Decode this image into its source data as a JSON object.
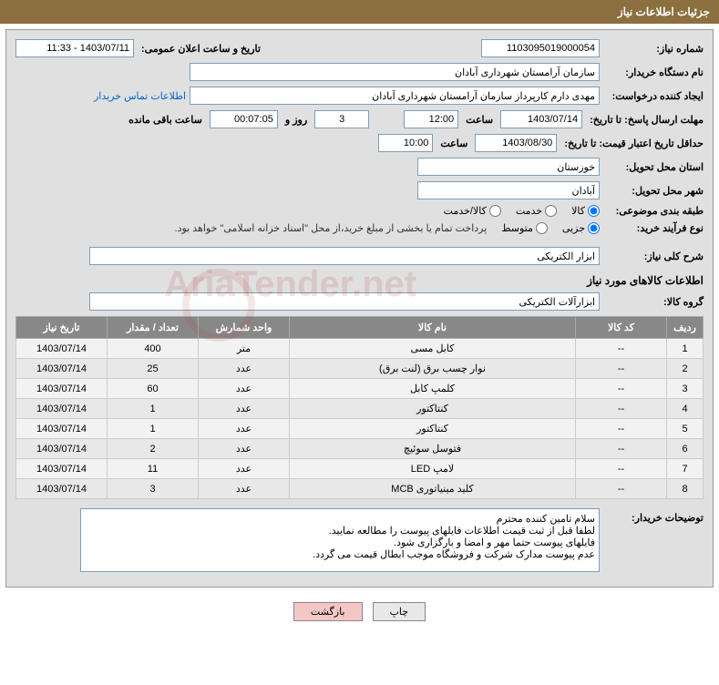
{
  "header": {
    "title": "جزئیات اطلاعات نیاز"
  },
  "form": {
    "need_number_label": "شماره نیاز:",
    "need_number": "1103095019000054",
    "announce_datetime_label": "تاریخ و ساعت اعلان عمومی:",
    "announce_datetime": "1403/07/11 - 11:33",
    "buyer_org_label": "نام دستگاه خریدار:",
    "buyer_org": "سازمان آرامستان شهرداری آبادان",
    "requester_label": "ایجاد کننده درخواست:",
    "requester": "مهدی دارم کارپرداز سازمان آرامستان شهرداری آبادان",
    "buyer_contact_link": "اطلاعات تماس خریدار",
    "response_deadline_label": "مهلت ارسال پاسخ: تا تاریخ:",
    "response_date": "1403/07/14",
    "time_label": "ساعت",
    "response_time": "12:00",
    "days_value": "3",
    "days_and_label": "روز و",
    "remaining_time": "00:07:05",
    "remaining_label": "ساعت باقی مانده",
    "price_validity_label": "حداقل تاریخ اعتبار قیمت: تا تاریخ:",
    "price_date": "1403/08/30",
    "price_time": "10:00",
    "delivery_province_label": "استان محل تحویل:",
    "delivery_province": "خوزستان",
    "delivery_city_label": "شهر محل تحویل:",
    "delivery_city": "آبادان",
    "category_label": "طبقه بندی موضوعی:",
    "cat_goods": "کالا",
    "cat_service": "خدمت",
    "cat_goods_service": "کالا/خدمت",
    "purchase_type_label": "نوع فرآیند خرید:",
    "pt_minor": "جزیی",
    "pt_medium": "متوسط",
    "payment_note": "پرداخت تمام یا بخشی از مبلغ خرید،از محل \"اسناد خزانه اسلامی\" خواهد بود.",
    "summary_label": "شرح کلی نیاز:",
    "summary_value": "ابزار الکتریکی",
    "goods_section_title": "اطلاعات کالاهای مورد نیاز",
    "goods_group_label": "گروه کالا:",
    "goods_group_value": "ابزارآلات الکتریکی",
    "notes_label": "توضیحات خریدار:",
    "notes_value": "سلام تامین کننده محترم\nلطفا قبل از ثبت قیمت اطلاعات فایلهای پیوست را مطالعه نمایید.\nفایلهای پیوست حتما مهر و امضا و بارگزاری شود.\nعدم پیوست مدارک شرکت و فروشگاه موجب ابطال قیمت می گردد."
  },
  "table": {
    "headers": [
      "ردیف",
      "کد کالا",
      "نام کالا",
      "واحد شمارش",
      "تعداد / مقدار",
      "تاریخ نیاز"
    ],
    "rows": [
      [
        "1",
        "--",
        "کابل مسی",
        "متر",
        "400",
        "1403/07/14"
      ],
      [
        "2",
        "--",
        "نوار چسب برق (لنت برق)",
        "عدد",
        "25",
        "1403/07/14"
      ],
      [
        "3",
        "--",
        "کلمپ کابل",
        "عدد",
        "60",
        "1403/07/14"
      ],
      [
        "4",
        "--",
        "کنتاکتور",
        "عدد",
        "1",
        "1403/07/14"
      ],
      [
        "5",
        "--",
        "کنتاکتور",
        "عدد",
        "1",
        "1403/07/14"
      ],
      [
        "6",
        "--",
        "فتوسل سوئیچ",
        "عدد",
        "2",
        "1403/07/14"
      ],
      [
        "7",
        "--",
        "لامپ LED",
        "عدد",
        "11",
        "1403/07/14"
      ],
      [
        "8",
        "--",
        "کلید مینیاتوری MCB",
        "عدد",
        "3",
        "1403/07/14"
      ]
    ],
    "col_widths": [
      "40px",
      "100px",
      "auto",
      "100px",
      "100px",
      "100px"
    ]
  },
  "buttons": {
    "print": "چاپ",
    "back": "بازگشت"
  },
  "colors": {
    "header_bg": "#8b6f3e",
    "panel_bg": "#e0e0e0",
    "th_bg": "#888888",
    "link": "#0066cc"
  }
}
